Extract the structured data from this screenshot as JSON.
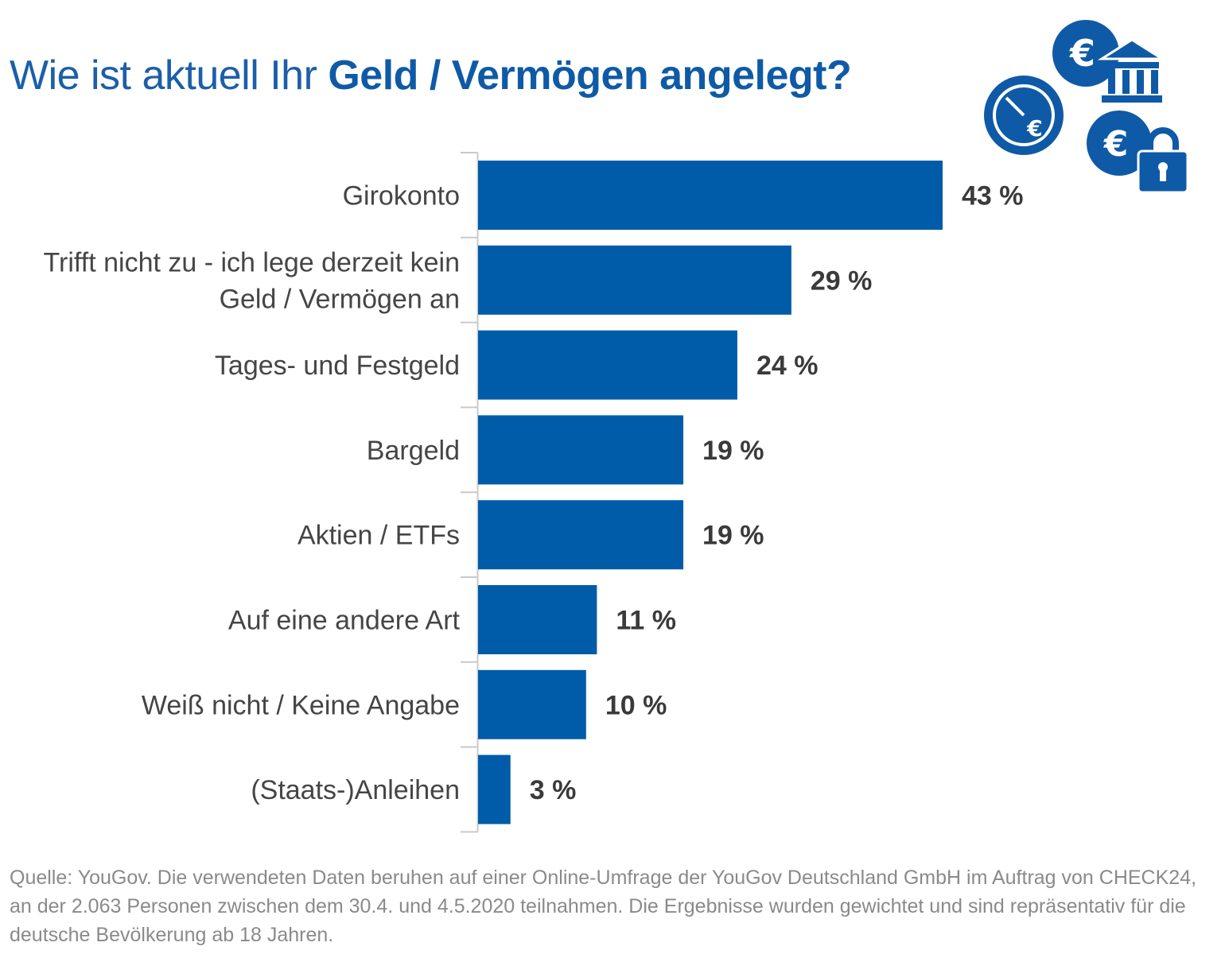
{
  "title": {
    "prefix": "Wie ist aktuell Ihr ",
    "bold": "Geld / Vermögen angelegt?"
  },
  "icons": [
    "clock-euro-icon",
    "euro-coin-icon",
    "bank-icon",
    "euro-lock-icon"
  ],
  "colors": {
    "bar": "#005ca8",
    "title": "#0f5aa6",
    "text": "#454545",
    "source": "#8a8a8a"
  },
  "chart_data": {
    "type": "bar",
    "orientation": "horizontal",
    "categories": [
      [
        "Girokonto"
      ],
      [
        "Trifft nicht zu - ich lege derzeit kein",
        "Geld / Vermögen an"
      ],
      [
        "Tages- und Festgeld"
      ],
      [
        "Bargeld"
      ],
      [
        "Aktien / ETFs"
      ],
      [
        "Auf eine andere Art"
      ],
      [
        "Weiß nicht / Keine Angabe"
      ],
      [
        "(Staats-)Anleihen"
      ]
    ],
    "values": [
      43,
      29,
      24,
      19,
      19,
      11,
      10,
      3
    ],
    "labels": [
      "43 %",
      "29 %",
      "24 %",
      "19 %",
      "19 %",
      "11 %",
      "10 %",
      "3 %"
    ],
    "unit": "%",
    "xlim": [
      0,
      43
    ],
    "grid": false,
    "legend": "none"
  },
  "source": "Quelle: YouGov. Die verwendeten Daten beruhen auf einer Online-Umfrage der YouGov Deutschland GmbH im Auftrag von CHECK24, an der 2.063 Personen zwischen dem 30.4. und 4.5.2020 teilnahmen. Die Ergebnisse wurden gewichtet und sind repräsentativ für die deutsche Bevölkerung ab 18 Jahren."
}
